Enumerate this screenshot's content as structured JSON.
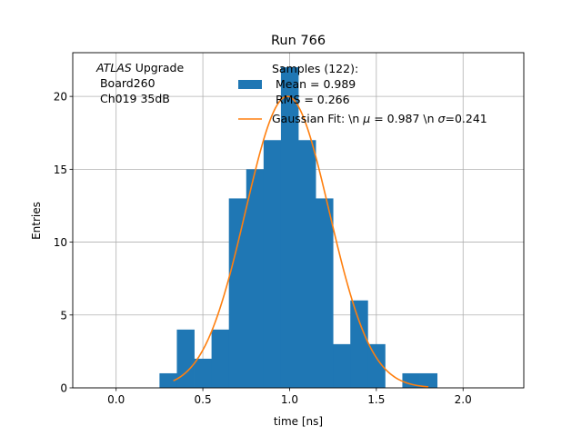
{
  "chart_data": {
    "type": "bar",
    "title": "Run 766",
    "xlabel": "time [ns]",
    "ylabel": "Entries",
    "xlim": [
      -0.25,
      2.35
    ],
    "ylim": [
      0,
      23
    ],
    "grid": true,
    "xticks": [
      0.0,
      0.5,
      1.0,
      1.5,
      2.0
    ],
    "xtick_labels": [
      "0.0",
      "0.5",
      "1.0",
      "1.5",
      "2.0"
    ],
    "yticks": [
      0,
      5,
      10,
      15,
      20
    ],
    "ytick_labels": [
      "0",
      "5",
      "10",
      "15",
      "20"
    ],
    "histogram": {
      "name": "Samples",
      "color": "#1f77b4",
      "bin_edges": [
        0.25,
        0.35,
        0.45,
        0.55,
        0.65,
        0.75,
        0.85,
        0.95,
        1.05,
        1.15,
        1.25,
        1.35,
        1.45,
        1.55,
        1.65,
        1.75,
        1.85
      ],
      "counts": [
        1,
        4,
        2,
        4,
        13,
        15,
        17,
        22,
        17,
        13,
        3,
        6,
        3,
        0,
        1,
        1
      ]
    },
    "gaussian_fit": {
      "color": "#ff7f0e",
      "amplitude": 20,
      "mu": 0.987,
      "sigma": 0.241,
      "x_range": [
        0.33,
        1.8
      ]
    },
    "annotation_lines": [
      "ATLAS",
      " Upgrade",
      " Board260",
      " Ch019 35dB"
    ],
    "legend": {
      "location": "upper-center",
      "hist_lines": [
        "Samples (122):",
        " Mean = 0.989",
        " RMS = 0.266"
      ],
      "fit_label_prefix": "Gaussian Fit: \\n ",
      "mu_symbol": "μ",
      "fit_label_mid": " = 0.987 \\n ",
      "sigma_symbol": "σ",
      "fit_label_suffix": "=0.241"
    }
  }
}
